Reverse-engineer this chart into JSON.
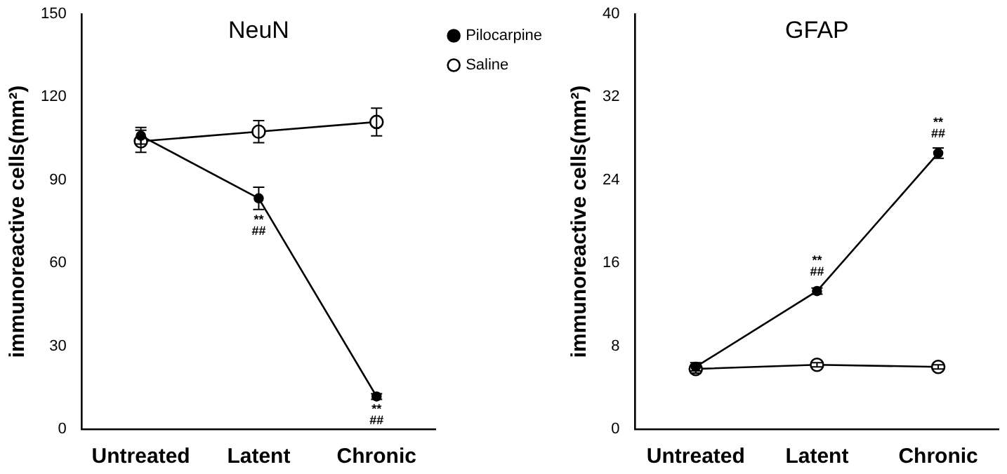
{
  "chart_data": [
    {
      "type": "line",
      "title": "NeuN",
      "ylabel": "immunoreactive cells(mm²)",
      "categories": [
        "Untreated",
        "Latent",
        "Chronic"
      ],
      "ylim": [
        0,
        150
      ],
      "yticks": [
        0,
        30,
        60,
        90,
        120,
        150
      ],
      "legend": "top right",
      "marker": "circle",
      "grid": false,
      "series": [
        {
          "name": "Pilocarpine",
          "color": "#000000",
          "values": [
            106,
            83.4,
            11.8
          ],
          "errors": [
            3,
            4,
            1
          ]
        },
        {
          "name": "Saline",
          "color": "#000000",
          "values": [
            104,
            107.5,
            111
          ],
          "errors": [
            4,
            4,
            5
          ]
        }
      ],
      "annotations": [
        {
          "text": "**\n##",
          "x": "Latent",
          "y": 83.4
        },
        {
          "text": "**\n##",
          "x": "Chronic",
          "y": 11.8
        }
      ]
    },
    {
      "type": "line",
      "title": "GFAP",
      "ylabel": "immunoreactive cells(mm²)",
      "categories": [
        "Untreated",
        "Latent",
        "Chronic"
      ],
      "ylim": [
        0,
        40
      ],
      "yticks": [
        0,
        8,
        16,
        24,
        32,
        40
      ],
      "marker": "circle",
      "grid": false,
      "series": [
        {
          "color": "#000000",
          "values": [
            6.0,
            13.3,
            26.6
          ],
          "errors": [
            0.4,
            0.3,
            0.5
          ]
        },
        {
          "color": "#000000",
          "values": [
            5.8,
            6.2,
            6.0
          ],
          "errors": [
            0.4,
            0.2,
            0.2
          ]
        }
      ],
      "annotations": [
        {
          "text": "**\n##",
          "x": "Latent",
          "y": 13.3
        },
        {
          "text": "**\n##",
          "x": "Chronic",
          "y": 26.6
        }
      ]
    }
  ]
}
